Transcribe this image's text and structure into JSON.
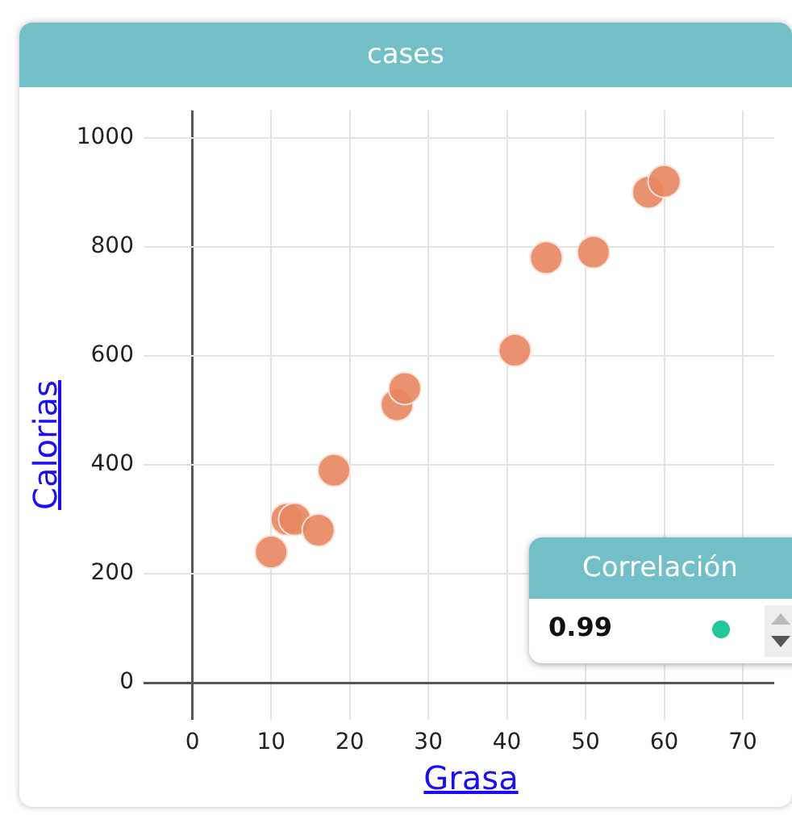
{
  "chart_data": {
    "type": "scatter",
    "title": "cases",
    "xlabel": "Grasa",
    "ylabel": "Calorias",
    "x": [
      10,
      12,
      13,
      16,
      18,
      26,
      27,
      41,
      45,
      51,
      58,
      60
    ],
    "values": [
      240,
      300,
      300,
      280,
      390,
      510,
      540,
      610,
      780,
      790,
      900,
      920
    ],
    "color": "#e8865f",
    "xlim": [
      -5,
      74
    ],
    "xticks": [
      0,
      10,
      20,
      30,
      40,
      50,
      60,
      70
    ],
    "ylim": [
      -50,
      1050
    ],
    "yticks": [
      0,
      200,
      400,
      600,
      800,
      1000
    ],
    "grid": true,
    "legend": false,
    "marker": "circle",
    "annotations": [
      "Correlación",
      "0.99"
    ]
  }
}
